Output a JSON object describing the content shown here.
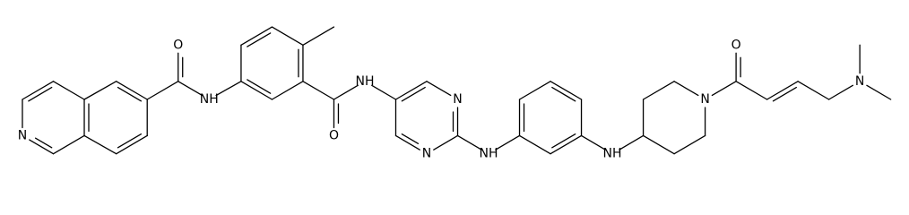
{
  "atom_labels": [
    "O",
    "NH",
    "N",
    "O",
    "NH",
    "N",
    "N",
    "NH",
    "NH",
    "N",
    "O",
    "N"
  ]
}
